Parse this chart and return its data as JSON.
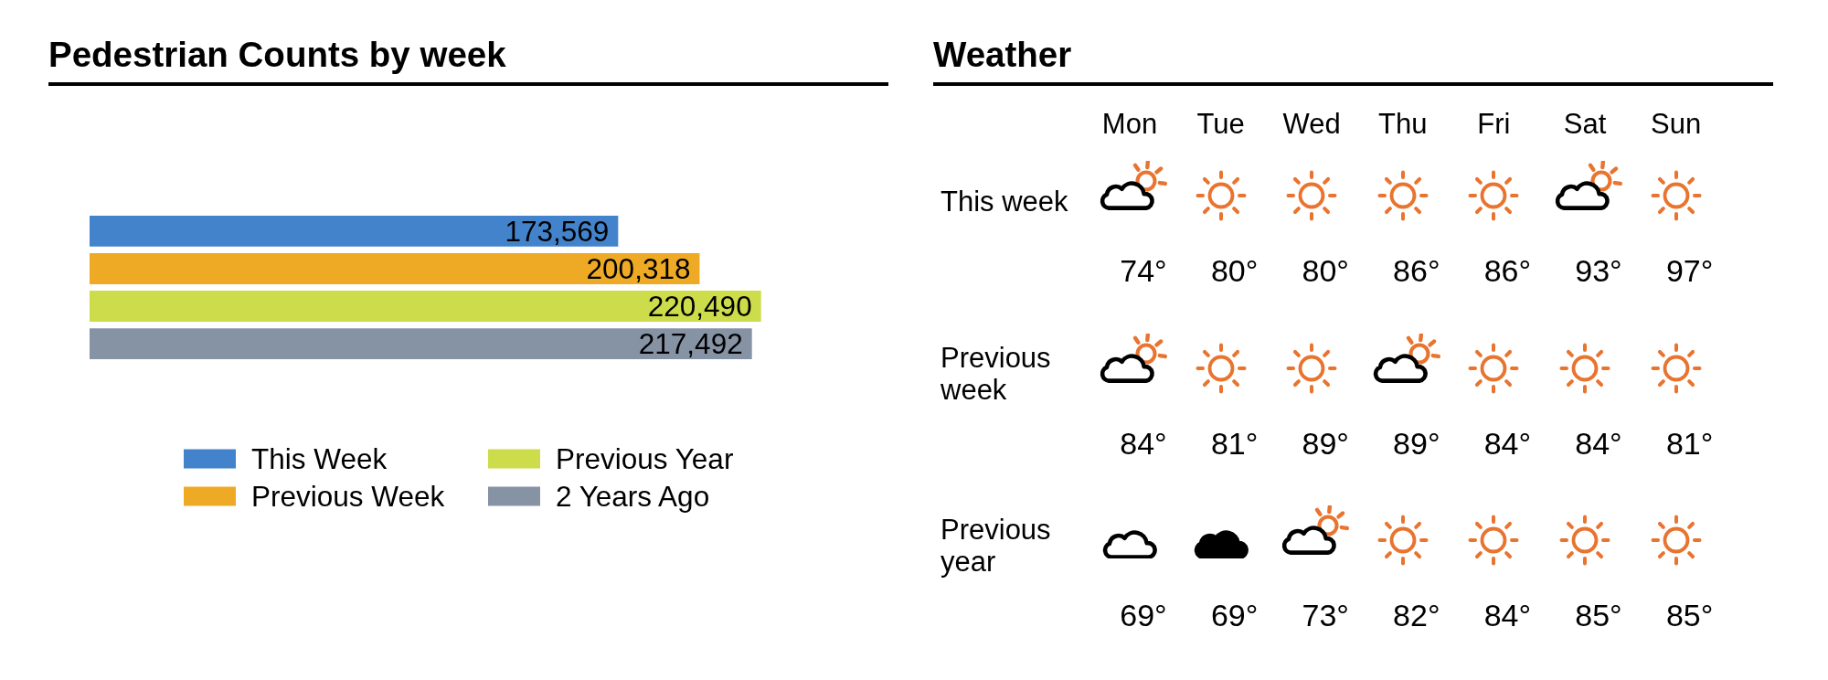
{
  "chart_data": [
    {
      "type": "bar",
      "title": "Pedestrian Counts by week",
      "orientation": "horizontal",
      "categories": [
        null
      ],
      "series": [
        {
          "name": "This Week",
          "color": "#4383cc",
          "values": [
            173569
          ],
          "value_labels": [
            "173,569"
          ]
        },
        {
          "name": "Previous Week",
          "color": "#eeaa25",
          "values": [
            200318
          ],
          "value_labels": [
            "200,318"
          ]
        },
        {
          "name": "Previous Year",
          "color": "#cddc4a",
          "values": [
            220490
          ],
          "value_labels": [
            "220,490"
          ]
        },
        {
          "name": "2 Years Ago",
          "color": "#8693a5",
          "values": [
            217492
          ],
          "value_labels": [
            "217,492"
          ]
        }
      ],
      "legend": "bottom",
      "tick_labels": false
    },
    {
      "type": "other",
      "title": "Weather",
      "categories": [
        "Mon",
        "Tue",
        "Wed",
        "Thu",
        "Fri",
        "Sat",
        "Sun"
      ],
      "y_categories": [
        "This week",
        "Previous week",
        "Previous year"
      ],
      "cell_labels": [
        [
          "74°",
          "80°",
          "80°",
          "86°",
          "86°",
          "93°",
          "97°"
        ],
        [
          "84°",
          "81°",
          "89°",
          "89°",
          "84°",
          "84°",
          "81°"
        ],
        [
          "69°",
          "69°",
          "73°",
          "82°",
          "84°",
          "85°",
          "85°"
        ]
      ]
    }
  ]
}
